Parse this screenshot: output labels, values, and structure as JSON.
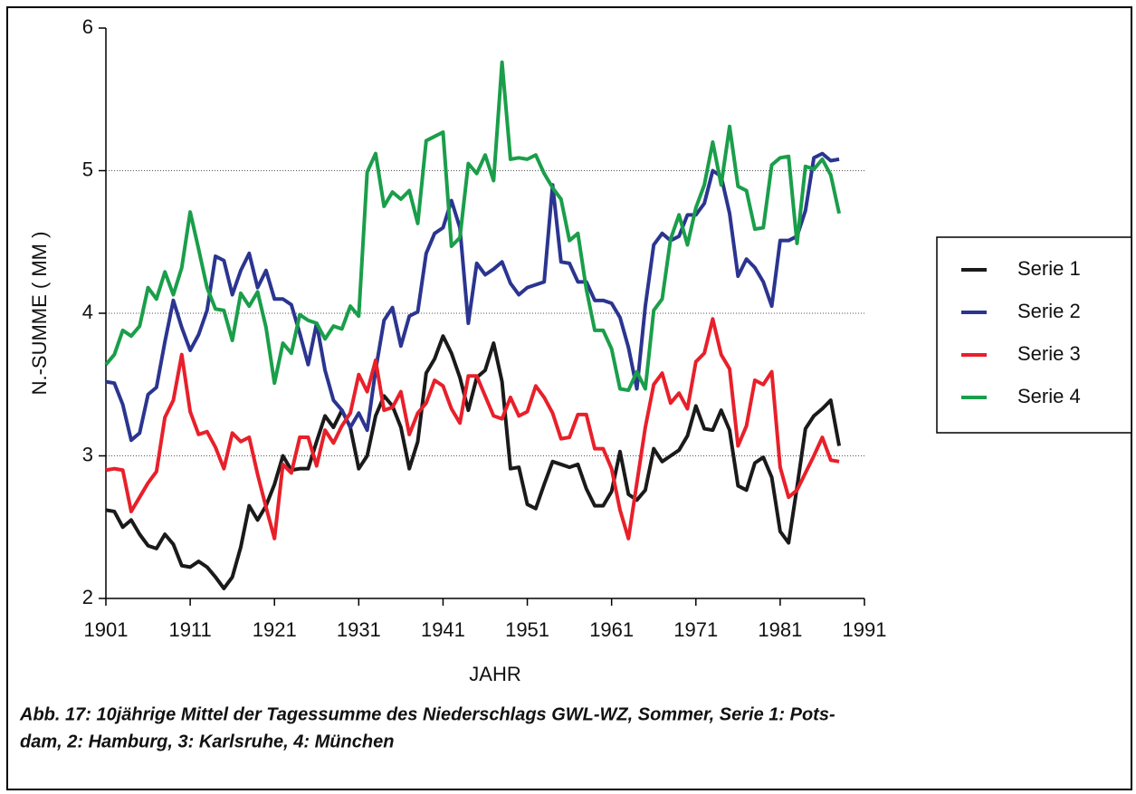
{
  "chart_data": {
    "type": "line",
    "xlabel": "JAHR",
    "ylabel": "N.-SUMME ( MM )",
    "caption": [
      "Abb. 17: 10jährige Mittel der Tagessumme des Niederschlags GWL-WZ, Sommer, Serie 1: Pots-",
      "dam, 2: Hamburg, 3: Karlsruhe, 4: München"
    ],
    "x": [
      1901,
      1902,
      1903,
      1904,
      1905,
      1906,
      1907,
      1908,
      1909,
      1910,
      1911,
      1912,
      1913,
      1914,
      1915,
      1916,
      1917,
      1918,
      1919,
      1920,
      1921,
      1922,
      1923,
      1924,
      1925,
      1926,
      1927,
      1928,
      1929,
      1930,
      1931,
      1932,
      1933,
      1934,
      1935,
      1936,
      1937,
      1938,
      1939,
      1940,
      1941,
      1942,
      1943,
      1944,
      1945,
      1946,
      1947,
      1948,
      1949,
      1950,
      1951,
      1952,
      1953,
      1954,
      1955,
      1956,
      1957,
      1958,
      1959,
      1960,
      1961,
      1962,
      1963,
      1964,
      1965,
      1966,
      1967,
      1968,
      1969,
      1970,
      1971,
      1972,
      1973,
      1974,
      1975,
      1976,
      1977,
      1978,
      1979,
      1980,
      1981,
      1982,
      1983,
      1984,
      1985,
      1986,
      1987,
      1988
    ],
    "series": [
      {
        "name": "Serie 1",
        "color": "#1a1a1a",
        "values": [
          2.62,
          2.61,
          2.5,
          2.55,
          2.45,
          2.37,
          2.35,
          2.45,
          2.38,
          2.23,
          2.22,
          2.26,
          2.22,
          2.15,
          2.07,
          2.15,
          2.36,
          2.65,
          2.55,
          2.65,
          2.8,
          3.0,
          2.9,
          2.91,
          2.91,
          3.1,
          3.28,
          3.2,
          3.32,
          3.2,
          2.91,
          3.0,
          3.28,
          3.42,
          3.35,
          3.2,
          2.91,
          3.1,
          3.58,
          3.68,
          3.84,
          3.72,
          3.55,
          3.32,
          3.55,
          3.6,
          3.79,
          3.52,
          2.91,
          2.92,
          2.66,
          2.63,
          2.8,
          2.96,
          2.94,
          2.92,
          2.94,
          2.77,
          2.65,
          2.65,
          2.75,
          3.03,
          2.73,
          2.69,
          2.76,
          3.05,
          2.96,
          3.0,
          3.04,
          3.14,
          3.35,
          3.19,
          3.18,
          3.32,
          3.18,
          2.79,
          2.76,
          2.95,
          2.99,
          2.85,
          2.47,
          2.39,
          2.78,
          3.19,
          3.28,
          3.33,
          3.39,
          3.07
        ]
      },
      {
        "name": "Serie 2",
        "color": "#2b3590",
        "values": [
          3.52,
          3.51,
          3.36,
          3.11,
          3.16,
          3.43,
          3.48,
          3.8,
          4.09,
          3.9,
          3.74,
          3.85,
          4.02,
          4.4,
          4.37,
          4.13,
          4.3,
          4.42,
          4.18,
          4.3,
          4.1,
          4.1,
          4.06,
          3.86,
          3.64,
          3.93,
          3.6,
          3.39,
          3.32,
          3.2,
          3.3,
          3.18,
          3.6,
          3.95,
          4.04,
          3.77,
          3.98,
          4.01,
          4.42,
          4.56,
          4.6,
          4.79,
          4.6,
          3.93,
          4.35,
          4.27,
          4.31,
          4.36,
          4.21,
          4.13,
          4.18,
          4.2,
          4.22,
          4.9,
          4.36,
          4.35,
          4.22,
          4.22,
          4.09,
          4.09,
          4.07,
          3.97,
          3.76,
          3.47,
          4.05,
          4.48,
          4.56,
          4.51,
          4.54,
          4.69,
          4.69,
          4.77,
          5.0,
          4.96,
          4.7,
          4.26,
          4.38,
          4.32,
          4.22,
          4.05,
          4.51,
          4.51,
          4.54,
          4.72,
          5.09,
          5.12,
          5.07,
          5.08
        ]
      },
      {
        "name": "Serie 3",
        "color": "#e8202a",
        "values": [
          2.9,
          2.91,
          2.9,
          2.61,
          2.71,
          2.81,
          2.89,
          3.27,
          3.39,
          3.71,
          3.31,
          3.15,
          3.17,
          3.06,
          2.91,
          3.16,
          3.1,
          3.13,
          2.87,
          2.64,
          2.42,
          2.94,
          2.88,
          3.13,
          3.13,
          2.93,
          3.18,
          3.09,
          3.21,
          3.3,
          3.57,
          3.45,
          3.67,
          3.32,
          3.34,
          3.45,
          3.15,
          3.3,
          3.37,
          3.53,
          3.49,
          3.33,
          3.23,
          3.56,
          3.56,
          3.42,
          3.28,
          3.26,
          3.41,
          3.28,
          3.31,
          3.49,
          3.41,
          3.3,
          3.12,
          3.13,
          3.29,
          3.29,
          3.05,
          3.05,
          2.91,
          2.62,
          2.42,
          2.81,
          3.2,
          3.5,
          3.58,
          3.37,
          3.44,
          3.33,
          3.66,
          3.72,
          3.96,
          3.71,
          3.61,
          3.07,
          3.21,
          3.53,
          3.5,
          3.59,
          2.92,
          2.71,
          2.76,
          2.88,
          3.0,
          3.13,
          2.97,
          2.96
        ]
      },
      {
        "name": "Serie 4",
        "color": "#1a9e4a",
        "values": [
          3.64,
          3.71,
          3.88,
          3.84,
          3.91,
          4.18,
          4.1,
          4.29,
          4.13,
          4.32,
          4.71,
          4.45,
          4.18,
          4.03,
          4.02,
          3.81,
          4.14,
          4.05,
          4.15,
          3.9,
          3.51,
          3.79,
          3.72,
          3.99,
          3.95,
          3.93,
          3.82,
          3.91,
          3.89,
          4.05,
          3.98,
          4.99,
          5.12,
          4.75,
          4.85,
          4.8,
          4.86,
          4.63,
          5.21,
          5.24,
          5.27,
          4.47,
          4.53,
          5.05,
          4.98,
          5.11,
          4.93,
          5.76,
          5.08,
          5.09,
          5.08,
          5.11,
          4.98,
          4.88,
          4.8,
          4.51,
          4.56,
          4.17,
          3.88,
          3.88,
          3.75,
          3.47,
          3.46,
          3.59,
          3.47,
          4.02,
          4.1,
          4.52,
          4.69,
          4.48,
          4.74,
          4.9,
          5.2,
          4.9,
          5.31,
          4.89,
          4.86,
          4.59,
          4.6,
          5.04,
          5.09,
          5.1,
          4.49,
          5.03,
          5.01,
          5.08,
          4.97,
          4.7
        ]
      }
    ],
    "xlim": [
      1901,
      1991
    ],
    "xticks": [
      1901,
      1911,
      1921,
      1931,
      1941,
      1951,
      1961,
      1971,
      1981,
      1991
    ],
    "ylim": [
      2,
      6
    ],
    "yticks": [
      2,
      3,
      4,
      5,
      6
    ],
    "grid": true,
    "legend": "right"
  }
}
